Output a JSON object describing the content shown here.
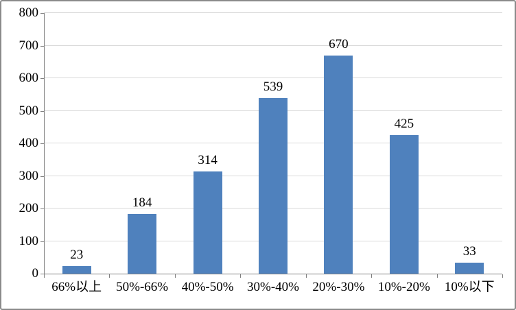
{
  "chart_data": {
    "type": "bar",
    "categories": [
      "66%以上",
      "50%-66%",
      "40%-50%",
      "30%-40%",
      "20%-30%",
      "10%-20%",
      "10%以下"
    ],
    "values": [
      23,
      184,
      314,
      539,
      670,
      425,
      33
    ],
    "data_labels": [
      "23",
      "184",
      "314",
      "539",
      "670",
      "425",
      "33"
    ],
    "title": "",
    "xlabel": "",
    "ylabel": "",
    "ylim": [
      0,
      800
    ],
    "ytick_step": 100,
    "y_tick_labels": [
      "0",
      "100",
      "200",
      "300",
      "400",
      "500",
      "600",
      "700",
      "800"
    ],
    "grid": true,
    "legend": false,
    "colors": {
      "bar_fill": "#4F81BD",
      "gridline": "#D9D9D9",
      "axis_line": "#7F7F7F",
      "text": "#000000",
      "frame_border": "#8A8A8A",
      "background": "#FFFFFF"
    }
  }
}
